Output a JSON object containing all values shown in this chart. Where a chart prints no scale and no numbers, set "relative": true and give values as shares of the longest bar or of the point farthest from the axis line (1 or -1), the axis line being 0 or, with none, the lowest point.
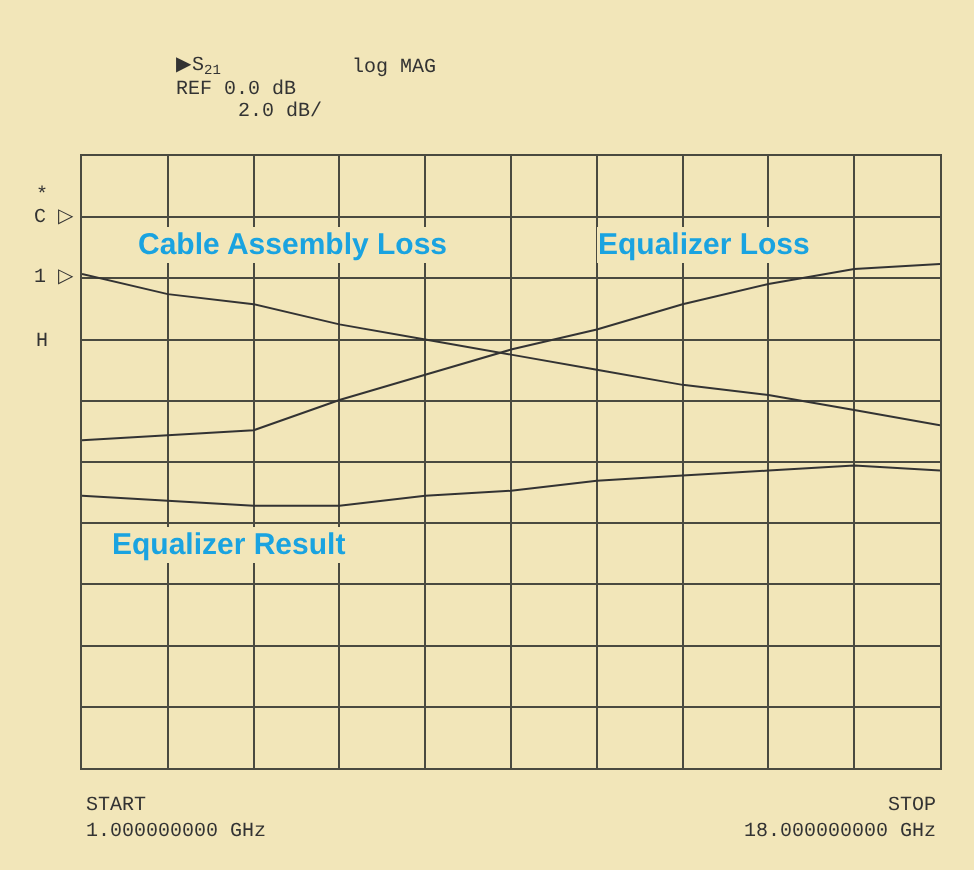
{
  "chart_data": {
    "type": "line",
    "relative": true,
    "grid": true,
    "legend": false,
    "marker": "none",
    "line_style": "solid",
    "categories": [
      null,
      null,
      null,
      null,
      null,
      null,
      null,
      null,
      null,
      null,
      null
    ],
    "series": [
      {
        "name": "Cable Assembly Loss",
        "color": "#333333",
        "values": [
          0.98,
          0.94,
          0.92,
          0.88,
          0.85,
          0.82,
          0.79,
          0.76,
          0.74,
          0.71,
          0.68
        ]
      },
      {
        "name": "Equalizer Loss",
        "color": "#333333",
        "values": [
          0.65,
          0.66,
          0.67,
          0.73,
          0.78,
          0.83,
          0.87,
          0.92,
          0.96,
          0.99,
          1
        ]
      },
      {
        "name": "Equalizer Result",
        "color": "#333333",
        "values": [
          0.54,
          0.53,
          0.52,
          0.52,
          0.54,
          0.55,
          0.57,
          0.58,
          0.59,
          0.6,
          0.59
        ]
      }
    ],
    "annotations": [
      "▶S$_{21}$",
      "log MAG",
      "REF 0.0 dB",
      "2.0 dB/",
      "*",
      "C ▷",
      "1 ▷",
      "H",
      "START\n1.000000000 GHz",
      "STOP\n18.000000000 GHz"
    ]
  }
}
